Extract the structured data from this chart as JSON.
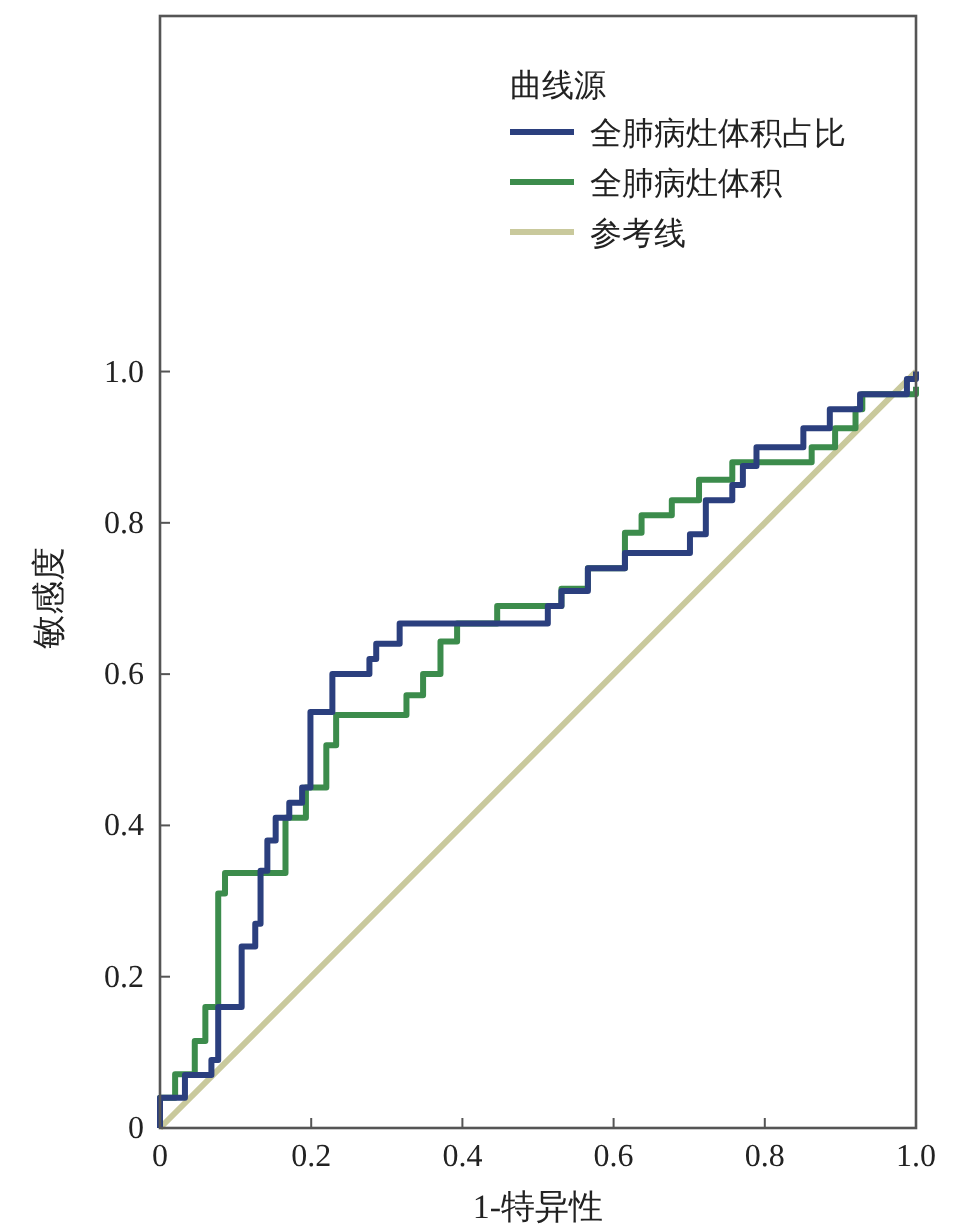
{
  "chart_data": {
    "type": "step",
    "xlabel": "1-特异性",
    "ylabel": "敏感度",
    "legend_title": "曲线源",
    "legend": "top right",
    "grid": false,
    "xlim": [
      0,
      1
    ],
    "xticks": [
      0,
      0.2,
      0.4,
      0.6,
      0.8,
      {
        "value": 1,
        "label": "1.0"
      }
    ],
    "ylim": [
      0,
      1.47
    ],
    "yticks": [
      0,
      0.2,
      0.4,
      0.6,
      0.8,
      {
        "value": 1,
        "label": "1.0"
      }
    ],
    "series": [
      {
        "name": "全肺病灶体积占比",
        "color": "#2b3f7e",
        "x": [
          0,
          0,
          0.033,
          0.068,
          0.077,
          0.108,
          0.126,
          0.133,
          0.142,
          0.153,
          0.171,
          0.188,
          0.199,
          0.228,
          0.277,
          0.286,
          0.317,
          0.513,
          0.531,
          0.566,
          0.615,
          0.701,
          0.722,
          0.757,
          0.771,
          0.789,
          0.851,
          0.886,
          0.926,
          0.988,
          1.0
        ],
        "values": [
          0,
          0.04,
          0.07,
          0.09,
          0.16,
          0.24,
          0.27,
          0.34,
          0.38,
          0.41,
          0.43,
          0.45,
          0.55,
          0.6,
          0.62,
          0.64,
          0.667,
          0.69,
          0.71,
          0.74,
          0.76,
          0.785,
          0.83,
          0.85,
          0.875,
          0.9,
          0.925,
          0.95,
          0.97,
          0.99,
          1.0
        ]
      },
      {
        "name": "全肺病灶体积",
        "color": "#3c8c4c",
        "x": [
          0,
          0,
          0.02,
          0.046,
          0.06,
          0.077,
          0.086,
          0.166,
          0.193,
          0.22,
          0.233,
          0.326,
          0.348,
          0.371,
          0.393,
          0.446,
          0.531,
          0.566,
          0.615,
          0.637,
          0.677,
          0.713,
          0.757,
          0.862,
          0.893,
          0.92,
          0.929,
          1.0
        ],
        "values": [
          0,
          0.04,
          0.071,
          0.115,
          0.16,
          0.31,
          0.337,
          0.41,
          0.45,
          0.506,
          0.546,
          0.572,
          0.6,
          0.643,
          0.667,
          0.69,
          0.713,
          0.74,
          0.787,
          0.81,
          0.83,
          0.857,
          0.88,
          0.9,
          0.925,
          0.95,
          0.97,
          0.98
        ]
      },
      {
        "name": "参考线",
        "color": "#c9c99c",
        "type": "line",
        "x": [
          0,
          1
        ],
        "values": [
          0,
          1
        ]
      }
    ]
  }
}
